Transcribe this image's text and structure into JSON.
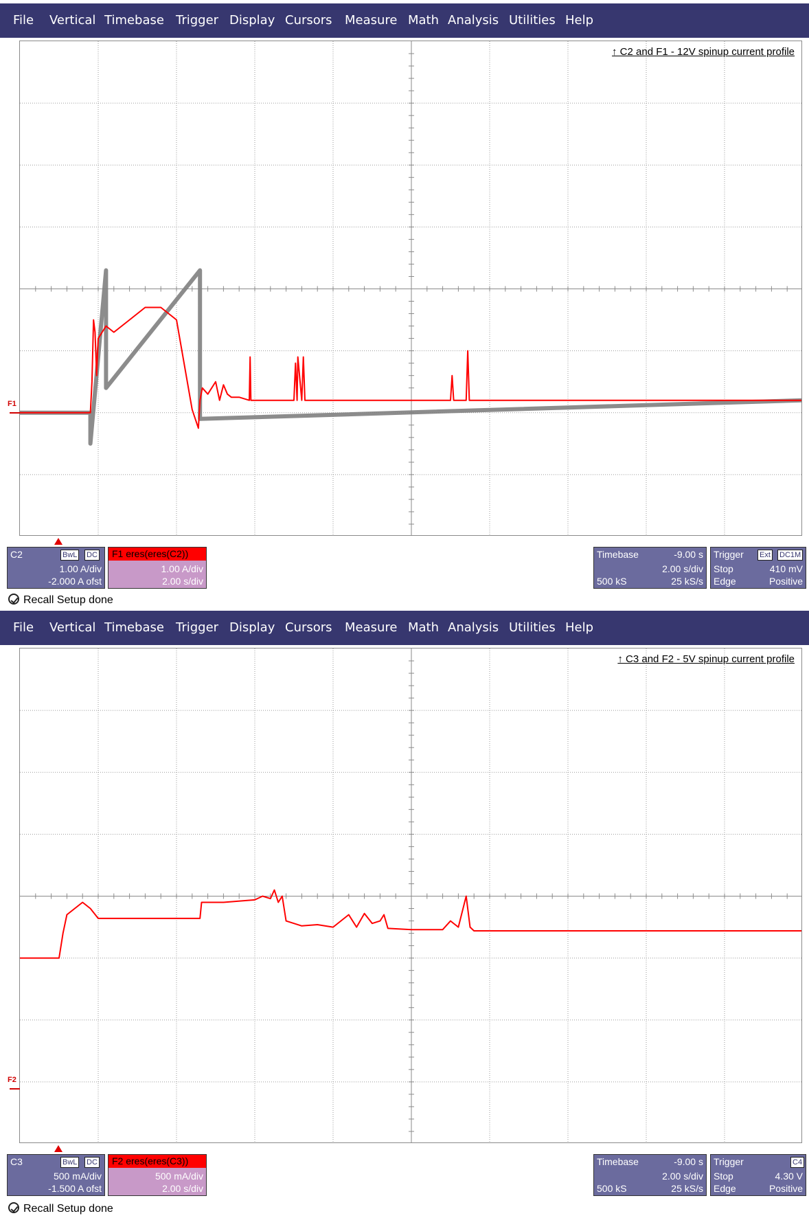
{
  "menu": [
    "File",
    "Vertical",
    "Timebase",
    "Trigger",
    "Display",
    "Cursors",
    "Measure",
    "Math",
    "Analysis",
    "Utilities",
    "Help"
  ],
  "colors": {
    "menu_bg": "#37376f",
    "channel_box": "#6b6b9e",
    "math_box": "#c899c8",
    "math_header": "#ff0000",
    "raw_trace": "#7f7f7f",
    "filtered_trace": "#ff0000"
  },
  "icons": {
    "status": "recall-setup-icon",
    "trigger_marker": "trigger-position-triangle-icon"
  },
  "scopes": [
    {
      "annotation": "↑ C2 and F1 - 12V spinup current profile",
      "ref_marker": "F1",
      "channel": {
        "name": "C2",
        "badges": [
          "BwL",
          "DC"
        ],
        "scale": "1.00 A/div",
        "offset": "-2.000 A ofst"
      },
      "math": {
        "header": "F1  eres(eres(C2))",
        "scale": "1.00 A/div",
        "time": "2.00 s/div"
      },
      "timebase": {
        "label": "Timebase",
        "delay": "-9.00 s",
        "rate": "2.00 s/div",
        "samples": "500 kS",
        "sample_rate": "25 kS/s"
      },
      "trigger": {
        "label": "Trigger",
        "badges": [
          "Ext",
          "DC1M"
        ],
        "mode": "Stop",
        "level": "410 mV",
        "type": "Edge",
        "slope": "Positive"
      },
      "status": "Recall Setup done",
      "chart_data": {
        "type": "line",
        "title": "C2 and F1 - 12V spinup current profile",
        "xlabel": "",
        "ylabel": "",
        "x_unit": "divisions",
        "y_unit": "A",
        "xlim": [
          0,
          10
        ],
        "ylim": [
          -2,
          6
        ],
        "grid": true,
        "series": [
          {
            "name": "F1",
            "x": [
              0.0,
              0.9,
              0.92,
              0.94,
              0.96,
              0.98,
              1.0,
              1.1,
              1.2,
              1.4,
              1.6,
              1.8,
              2.0,
              2.2,
              2.28,
              2.3,
              2.33,
              2.4,
              2.5,
              2.55,
              2.6,
              2.65,
              2.7,
              2.8,
              2.93,
              2.94,
              2.95,
              3.5,
              3.52,
              3.54,
              3.55,
              3.6,
              3.62,
              3.64,
              3.7,
              4.5,
              5.5,
              5.52,
              5.54,
              5.56,
              5.7,
              5.72,
              5.74,
              5.76,
              6.0,
              7.0,
              8.0,
              9.0,
              10.0
            ],
            "values": [
              0.0,
              0.0,
              0.5,
              1.5,
              1.3,
              0.6,
              1.2,
              1.4,
              1.3,
              1.5,
              1.7,
              1.7,
              1.5,
              0.05,
              -0.25,
              0.2,
              0.4,
              0.3,
              0.5,
              0.2,
              0.45,
              0.3,
              0.25,
              0.25,
              0.2,
              0.9,
              0.2,
              0.2,
              0.8,
              0.2,
              0.9,
              0.2,
              0.9,
              0.2,
              0.2,
              0.2,
              0.2,
              0.6,
              0.2,
              0.2,
              0.2,
              1.0,
              0.2,
              0.2,
              0.2,
              0.2,
              0.2,
              0.2,
              0.2
            ]
          },
          {
            "name": "C2",
            "x": [
              0.0,
              0.9,
              0.9,
              1.1,
              1.1,
              2.3,
              2.3,
              10.0
            ],
            "values": [
              0.0,
              0.0,
              -0.5,
              2.3,
              0.4,
              2.3,
              -0.1,
              0.2
            ]
          }
        ]
      }
    },
    {
      "annotation": "↑ C3 and F2 - 5V spinup current profile",
      "ref_marker": "F2",
      "channel": {
        "name": "C3",
        "badges": [
          "BwL",
          "DC"
        ],
        "scale": "500 mA/div",
        "offset": "-1.500 A ofst"
      },
      "math": {
        "header": "F2  eres(eres(C3))",
        "scale": "500 mA/div",
        "time": "2.00 s/div"
      },
      "timebase": {
        "label": "Timebase",
        "delay": "-9.00 s",
        "rate": "2.00 s/div",
        "samples": "500 kS",
        "sample_rate": "25 kS/s"
      },
      "trigger": {
        "label": "Trigger",
        "badges": [
          "C4"
        ],
        "mode": "Stop",
        "level": "4.30 V",
        "type": "Edge",
        "slope": "Positive"
      },
      "status": "Recall Setup done",
      "chart_data": {
        "type": "line",
        "title": "C3 and F2 - 5V spinup current profile",
        "xlabel": "",
        "ylabel": "",
        "x_unit": "divisions",
        "y_unit": "A",
        "xlim": [
          0,
          10
        ],
        "ylim": [
          -1.5,
          2.5
        ],
        "grid": true,
        "series": [
          {
            "name": "F2",
            "x": [
              0.0,
              0.5,
              0.55,
              0.6,
              0.7,
              0.8,
              0.9,
              1.0,
              2.3,
              2.32,
              2.6,
              3.0,
              3.1,
              3.2,
              3.25,
              3.3,
              3.35,
              3.4,
              3.6,
              3.8,
              4.0,
              4.2,
              4.3,
              4.4,
              4.5,
              4.6,
              4.65,
              4.7,
              5.0,
              5.4,
              5.5,
              5.6,
              5.7,
              5.75,
              5.8,
              6.0,
              7.0,
              8.0,
              9.0,
              10.0
            ],
            "values": [
              0.0,
              0.0,
              0.2,
              0.35,
              0.4,
              0.45,
              0.4,
              0.32,
              0.32,
              0.45,
              0.45,
              0.47,
              0.5,
              0.48,
              0.55,
              0.45,
              0.5,
              0.3,
              0.26,
              0.27,
              0.25,
              0.35,
              0.25,
              0.36,
              0.28,
              0.3,
              0.35,
              0.24,
              0.23,
              0.23,
              0.3,
              0.25,
              0.5,
              0.25,
              0.22,
              0.22,
              0.22,
              0.22,
              0.22,
              0.22
            ]
          }
        ]
      }
    }
  ]
}
